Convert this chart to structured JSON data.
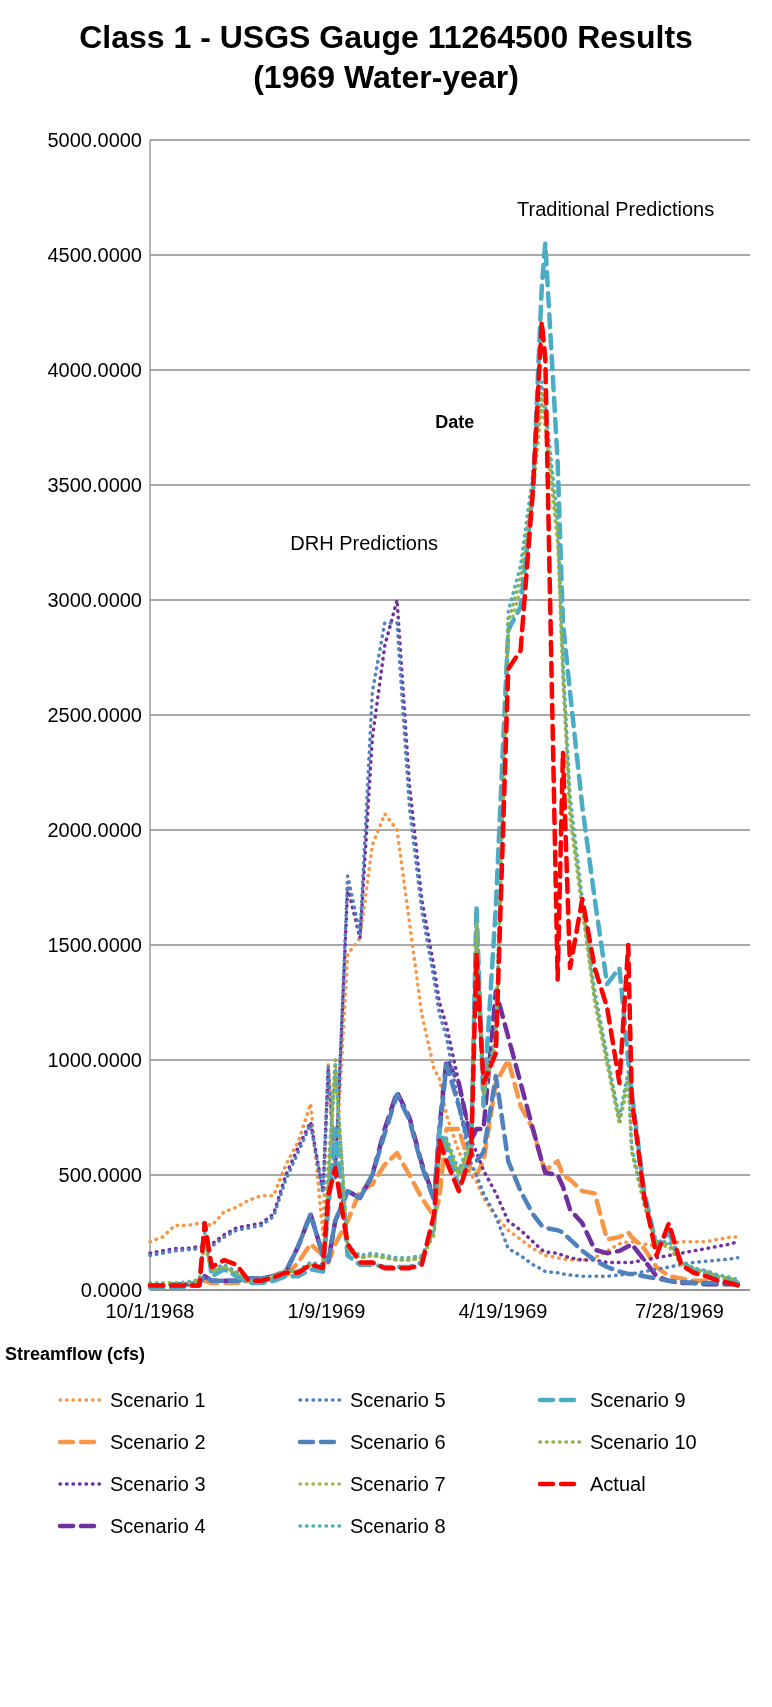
{
  "chart_data": {
    "type": "line",
    "title": "Class 1 - USGS Gauge 11264500 Results (1969 Water-year)",
    "xlabel": "Date",
    "ylabel": "Streamflow (cfs)",
    "annotations": [
      "DRH Predictions",
      "Traditional Predictions"
    ],
    "x": [
      "1968-10-01",
      "1968-10-08",
      "1968-10-15",
      "1968-10-22",
      "1968-10-29",
      "1968-11-01",
      "1968-11-05",
      "1968-11-12",
      "1968-11-19",
      "1968-11-26",
      "1968-12-03",
      "1968-12-10",
      "1968-12-17",
      "1968-12-24",
      "1968-12-31",
      "1969-01-07",
      "1969-01-10",
      "1969-01-14",
      "1969-01-21",
      "1969-01-28",
      "1969-02-04",
      "1969-02-11",
      "1969-02-18",
      "1969-02-25",
      "1969-03-04",
      "1969-03-11",
      "1969-03-14",
      "1969-03-18",
      "1969-03-25",
      "1969-04-01",
      "1969-04-04",
      "1969-04-08",
      "1969-04-15",
      "1969-04-22",
      "1969-04-29",
      "1969-05-06",
      "1969-05-11",
      "1969-05-13",
      "1969-05-20",
      "1969-05-23",
      "1969-05-27",
      "1969-06-03",
      "1969-06-10",
      "1969-06-17",
      "1969-06-24",
      "1969-06-29",
      "1969-07-01",
      "1969-07-08",
      "1969-07-15",
      "1969-07-22",
      "1969-07-29",
      "1969-08-05",
      "1969-08-12",
      "1969-08-19",
      "1969-08-26",
      "1969-08-30"
    ],
    "xlim": [
      "1968-10-01",
      "1969-09-06"
    ],
    "xticks": [
      {
        "value": "1968-10-01",
        "label": "10/1/1968"
      },
      {
        "value": "1969-01-09",
        "label": "1/9/1969"
      },
      {
        "value": "1969-04-19",
        "label": "4/19/1969"
      },
      {
        "value": "1969-07-28",
        "label": "7/28/1969"
      }
    ],
    "ylim": [
      0,
      5000
    ],
    "yticks": [
      {
        "value": 0,
        "label": "0.0000"
      },
      {
        "value": 500,
        "label": "500.0000"
      },
      {
        "value": 1000,
        "label": "1000.0000"
      },
      {
        "value": 1500,
        "label": "1500.0000"
      },
      {
        "value": 2000,
        "label": "2000.0000"
      },
      {
        "value": 2500,
        "label": "2500.0000"
      },
      {
        "value": 3000,
        "label": "3000.0000"
      },
      {
        "value": 3500,
        "label": "3500.0000"
      },
      {
        "value": 4000,
        "label": "4000.0000"
      },
      {
        "value": 4500,
        "label": "4500.0000"
      },
      {
        "value": 5000,
        "label": "5000.0000"
      }
    ],
    "grid": "y",
    "legend": "bottom",
    "series": [
      {
        "name": "Scenario 1",
        "color": "#f79646",
        "line_style": "dotted",
        "values": [
          210,
          230,
          280,
          280,
          290,
          290,
          280,
          340,
          360,
          390,
          410,
          410,
          545,
          645,
          810,
          240,
          980,
          500,
          1460,
          1530,
          1935,
          2070,
          2000,
          1600,
          1200,
          960,
          920,
          760,
          600,
          500,
          470,
          400,
          320,
          260,
          220,
          180,
          160,
          150,
          140,
          135,
          130,
          130,
          140,
          170,
          200,
          210,
          210,
          200,
          190,
          200,
          210,
          210,
          210,
          220,
          230,
          230
        ]
      },
      {
        "name": "Scenario 2",
        "color": "#f79646",
        "line_style": "dashed",
        "values": [
          null,
          null,
          null,
          null,
          null,
          40,
          30,
          30,
          30,
          40,
          40,
          50,
          60,
          120,
          200,
          150,
          120,
          200,
          300,
          430,
          460,
          545,
          595,
          500,
          400,
          320,
          400,
          700,
          700,
          520,
          500,
          560,
          900,
          1000,
          800,
          700,
          560,
          520,
          560,
          500,
          480,
          430,
          420,
          220,
          230,
          250,
          230,
          180,
          100,
          60,
          50,
          40,
          40,
          null,
          null,
          null
        ]
      },
      {
        "name": "Scenario 3",
        "color": "#7030a0",
        "line_style": "dotted",
        "values": [
          160,
          170,
          180,
          180,
          190,
          190,
          200,
          240,
          270,
          280,
          290,
          330,
          500,
          620,
          730,
          430,
          960,
          500,
          1750,
          1530,
          2400,
          2800,
          3000,
          2200,
          1700,
          1400,
          1250,
          1150,
          900,
          650,
          600,
          520,
          420,
          300,
          260,
          210,
          175,
          165,
          160,
          150,
          140,
          130,
          130,
          120,
          120,
          120,
          120,
          130,
          140,
          150,
          160,
          170,
          180,
          190,
          200,
          210
        ]
      },
      {
        "name": "Scenario 4",
        "color": "#7030a0",
        "line_style": "dashed",
        "values": [
          null,
          null,
          null,
          25,
          30,
          60,
          40,
          40,
          40,
          50,
          50,
          60,
          80,
          190,
          330,
          150,
          125,
          300,
          430,
          400,
          500,
          700,
          860,
          750,
          550,
          400,
          700,
          1000,
          900,
          650,
          700,
          700,
          1300,
          1100,
          900,
          700,
          560,
          510,
          500,
          450,
          350,
          290,
          175,
          160,
          170,
          190,
          200,
          130,
          60,
          40,
          30,
          30,
          25,
          25,
          25,
          25
        ]
      },
      {
        "name": "Scenario 5",
        "color": "#4f81bd",
        "line_style": "dotted",
        "values": [
          150,
          160,
          170,
          175,
          180,
          180,
          190,
          230,
          260,
          270,
          280,
          320,
          480,
          600,
          720,
          420,
          970,
          480,
          1800,
          1550,
          2600,
          2900,
          2900,
          2100,
          1650,
          1350,
          1200,
          1100,
          800,
          550,
          500,
          420,
          320,
          180,
          150,
          110,
          90,
          80,
          75,
          70,
          65,
          60,
          60,
          60,
          65,
          70,
          70,
          80,
          90,
          100,
          110,
          120,
          125,
          130,
          135,
          140
        ]
      },
      {
        "name": "Scenario 6",
        "color": "#4f81bd",
        "line_style": "dashed",
        "values": [
          20,
          20,
          25,
          25,
          30,
          60,
          40,
          40,
          40,
          50,
          50,
          60,
          80,
          190,
          330,
          150,
          125,
          300,
          430,
          400,
          500,
          680,
          850,
          740,
          540,
          390,
          680,
          980,
          800,
          595,
          560,
          600,
          930,
          560,
          430,
          330,
          280,
          270,
          260,
          250,
          220,
          170,
          130,
          100,
          80,
          70,
          70,
          60,
          50,
          40,
          35,
          30,
          30,
          30,
          30,
          30
        ]
      },
      {
        "name": "Scenario 7",
        "color": "#9bbb59",
        "line_style": "dotted",
        "values": [
          25,
          25,
          25,
          30,
          35,
          220,
          80,
          100,
          70,
          40,
          40,
          60,
          80,
          80,
          110,
          100,
          450,
          950,
          170,
          140,
          150,
          140,
          130,
          130,
          140,
          240,
          580,
          640,
          500,
          640,
          1580,
          840,
          1080,
          2850,
          3050,
          3450,
          3850,
          3750,
          3250,
          2650,
          2050,
          1650,
          1250,
          980,
          720,
          900,
          600,
          370,
          190,
          190,
          110,
          85,
          75,
          55,
          45,
          35
        ]
      },
      {
        "name": "Scenario 8",
        "color": "#4bacc6",
        "line_style": "dotted",
        "values": [
          30,
          30,
          30,
          35,
          45,
          250,
          90,
          110,
          80,
          45,
          45,
          65,
          85,
          85,
          120,
          110,
          520,
          980,
          190,
          150,
          160,
          150,
          140,
          140,
          150,
          260,
          620,
          660,
          520,
          660,
          1650,
          870,
          1120,
          2950,
          3150,
          3550,
          3950,
          3850,
          3350,
          2750,
          2150,
          1700,
          1300,
          1020,
          750,
          950,
          620,
          390,
          210,
          210,
          130,
          95,
          85,
          65,
          55,
          45
        ]
      },
      {
        "name": "Scenario 9",
        "color": "#4bacc6",
        "line_style": "dashed",
        "values": [
          10,
          10,
          10,
          15,
          20,
          290,
          60,
          90,
          60,
          30,
          30,
          40,
          60,
          60,
          90,
          80,
          350,
          700,
          150,
          110,
          110,
          100,
          100,
          100,
          120,
          300,
          700,
          620,
          450,
          600,
          1670,
          800,
          1670,
          2870,
          2970,
          3470,
          4360,
          4550,
          3600,
          2900,
          2600,
          2100,
          1700,
          1330,
          1400,
          1000,
          860,
          430,
          190,
          250,
          120,
          90,
          70,
          50,
          40,
          30
        ]
      },
      {
        "name": "Scenario 10",
        "color": "#8fb04f",
        "line_style": "dotted",
        "values": [
          30,
          30,
          30,
          30,
          40,
          200,
          80,
          100,
          70,
          40,
          40,
          60,
          80,
          80,
          110,
          100,
          500,
          1000,
          180,
          140,
          150,
          140,
          130,
          130,
          140,
          250,
          600,
          650,
          500,
          650,
          1600,
          850,
          1100,
          2900,
          3100,
          3500,
          3900,
          3800,
          3300,
          2700,
          2100,
          1670,
          1270,
          1000,
          730,
          930,
          600,
          380,
          200,
          200,
          120,
          90,
          80,
          60,
          50,
          40
        ]
      },
      {
        "name": "Actual",
        "color": "#ff0000",
        "line_style": "dashed",
        "values": [
          20,
          20,
          20,
          20,
          20,
          290,
          100,
          130,
          110,
          40,
          40,
          55,
          75,
          75,
          110,
          95,
          410,
          530,
          200,
          120,
          120,
          95,
          95,
          95,
          110,
          330,
          650,
          560,
          430,
          590,
          1460,
          900,
          1030,
          2700,
          2780,
          3480,
          4210,
          4050,
          1350,
          2340,
          1400,
          1700,
          1400,
          1230,
          900,
          1500,
          830,
          410,
          150,
          290,
          110,
          75,
          60,
          40,
          30,
          20
        ]
      }
    ]
  }
}
